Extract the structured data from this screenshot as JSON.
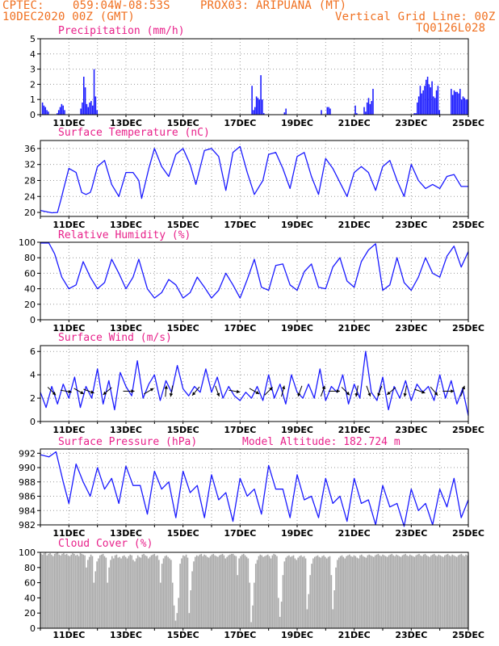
{
  "header": {
    "source": "CPTEC:",
    "coords": "059:04W-08:53S",
    "location": "PROX03: ARIPUANA (MT)",
    "run": "10DEC2020 00Z (GMT)",
    "grid_note": "Vertical Grid Line: 00Z",
    "model_code": "TQ0126L028"
  },
  "colors": {
    "header": "#f07020",
    "title": "#e8208a",
    "series": "#1a1aff",
    "cloud": "#aaaaaa",
    "grid": "#9a9a9a"
  },
  "chart_data": [
    {
      "type": "bar",
      "title": "Precipitation (mm/h)",
      "x_range_days": [
        0,
        15
      ],
      "x_ticks": [
        "11DEC",
        "13DEC",
        "15DEC",
        "17DEC",
        "19DEC",
        "21DEC",
        "23DEC",
        "25DEC"
      ],
      "y_ticks": [
        0,
        1,
        2,
        3,
        4,
        5
      ],
      "ylim": [
        0,
        5
      ],
      "grid": true,
      "values": [
        0,
        0.8,
        0.6,
        0.5,
        0.3,
        0.2,
        0,
        0,
        0,
        0,
        0,
        0.1,
        0.3,
        0.5,
        0.7,
        0.6,
        0.3,
        0,
        0,
        0,
        0,
        0,
        0,
        0,
        0,
        0,
        0,
        0.4,
        0.8,
        2.5,
        1.8,
        0.7,
        0.5,
        0.8,
        0.9,
        0.6,
        3.0,
        1.2,
        0.3,
        0,
        0,
        0,
        0,
        0,
        0,
        0,
        0,
        0,
        0,
        0,
        0,
        0,
        0,
        0,
        0,
        0,
        0,
        0,
        0,
        0,
        0,
        0,
        0,
        0,
        0,
        0,
        0,
        0,
        0,
        0,
        0,
        0,
        0,
        0,
        0,
        0,
        0,
        0,
        0,
        0,
        0,
        0,
        0,
        0,
        0,
        0,
        0,
        0,
        0,
        0,
        0,
        0,
        0,
        0,
        0,
        0,
        0,
        0,
        0,
        0,
        0,
        0,
        0,
        0,
        0,
        0,
        0,
        0,
        0,
        0,
        0,
        0,
        0,
        0,
        0,
        0,
        0,
        0,
        0,
        0,
        0,
        0,
        0,
        0,
        0,
        0,
        0,
        0,
        0,
        0,
        0,
        0,
        0,
        0,
        0,
        0,
        0,
        0,
        0,
        0,
        0,
        0,
        0,
        1.9,
        0.3,
        0.5,
        1.2,
        1.1,
        1.0,
        2.6,
        1.0,
        0.1,
        0,
        0,
        0,
        0,
        0,
        0,
        0,
        0,
        0,
        0,
        0,
        0,
        0,
        0.15,
        0.4,
        0,
        0,
        0,
        0,
        0,
        0,
        0,
        0,
        0,
        0,
        0,
        0,
        0,
        0,
        0,
        0,
        0,
        0,
        0,
        0,
        0,
        0,
        0,
        0.3,
        0,
        0,
        0,
        0.5,
        0.5,
        0.4,
        0,
        0,
        0,
        0,
        0,
        0,
        0,
        0,
        0,
        0,
        0,
        0,
        0,
        0,
        0,
        0,
        0.6,
        0.1,
        0,
        0,
        0,
        0,
        0.5,
        0.2,
        0.8,
        1.1,
        0.7,
        0.9,
        1.7,
        0,
        0,
        0,
        0,
        0,
        0,
        0,
        0,
        0,
        0,
        0,
        0,
        0,
        0,
        0,
        0,
        0,
        0,
        0,
        0,
        0,
        0,
        0,
        0,
        0,
        0,
        0,
        0.1,
        0.1,
        0.8,
        1.2,
        1.9,
        1.4,
        1.6,
        1.9,
        2.3,
        2.5,
        2.0,
        1.8,
        2.2,
        1.2,
        1.1,
        1.6,
        1.9,
        0.3,
        0,
        0,
        0,
        0,
        0,
        0,
        0,
        1.7,
        1.3,
        1.6,
        1.5,
        1.5,
        1.4,
        1.7,
        1.0,
        1.2,
        1.1,
        1.0,
        1.0
      ]
    },
    {
      "type": "line",
      "title": "Surface Temperature (nC)",
      "x_range_days": [
        0,
        15
      ],
      "x_ticks": [
        "11DEC",
        "13DEC",
        "15DEC",
        "17DEC",
        "19DEC",
        "21DEC",
        "23DEC",
        "25DEC"
      ],
      "y_ticks": [
        20,
        24,
        28,
        32,
        36
      ],
      "ylim": [
        19,
        38
      ],
      "grid": true,
      "x_days": [
        0.0,
        0.2,
        0.4,
        0.6,
        0.75,
        0.8,
        1.0,
        1.25,
        1.45,
        1.6,
        1.75,
        1.8,
        2.0,
        2.25,
        2.5,
        2.75,
        3.0,
        3.25,
        3.45,
        3.55,
        3.8,
        4.0,
        4.25,
        4.5,
        4.75,
        5.0,
        5.25,
        5.45,
        5.75,
        6.0,
        6.25,
        6.5,
        6.75,
        7.0,
        7.25,
        7.5,
        7.8,
        8.0,
        8.25,
        8.5,
        8.75,
        9.0,
        9.25,
        9.5,
        9.75,
        10.0,
        10.25,
        10.5,
        10.75,
        11.0,
        11.25,
        11.5,
        11.75,
        12.0,
        12.25,
        12.5,
        12.75,
        13.0,
        13.25,
        13.5,
        13.75,
        14.0,
        14.25,
        14.5,
        14.75,
        15.0
      ],
      "y": [
        20.5,
        20.2,
        19.9,
        20.0,
        24.0,
        25.5,
        31.0,
        30.0,
        25.0,
        24.5,
        25.0,
        26.0,
        31.5,
        33.0,
        27.0,
        24.0,
        30.0,
        30.0,
        28.0,
        23.5,
        31.0,
        36.0,
        31.5,
        29.0,
        34.5,
        36.0,
        32.0,
        27.0,
        35.5,
        36.0,
        34.0,
        25.5,
        35.0,
        36.5,
        30.0,
        24.5,
        28.0,
        34.5,
        35.0,
        31.0,
        26.0,
        34.0,
        35.0,
        29.0,
        24.5,
        33.5,
        31.0,
        27.5,
        24.0,
        30.0,
        31.5,
        30.0,
        25.5,
        31.5,
        33.0,
        28.0,
        24.0,
        32.0,
        28.0,
        26.0,
        27.0,
        26.0,
        29.0,
        29.5,
        26.5,
        26.5
      ]
    },
    {
      "type": "line",
      "title": "Relative Humidity (%)",
      "x_range_days": [
        0,
        15
      ],
      "x_ticks": [
        "11DEC",
        "13DEC",
        "15DEC",
        "17DEC",
        "19DEC",
        "21DEC",
        "23DEC",
        "25DEC"
      ],
      "y_ticks": [
        0,
        20,
        40,
        60,
        80,
        100
      ],
      "ylim": [
        0,
        100
      ],
      "grid": true,
      "x_days": [
        0.0,
        0.3,
        0.5,
        0.75,
        1.0,
        1.25,
        1.5,
        1.75,
        2.0,
        2.25,
        2.5,
        2.75,
        3.0,
        3.25,
        3.45,
        3.75,
        4.0,
        4.25,
        4.5,
        4.75,
        5.0,
        5.25,
        5.5,
        5.75,
        6.0,
        6.25,
        6.5,
        6.75,
        7.0,
        7.25,
        7.5,
        7.75,
        8.0,
        8.25,
        8.5,
        8.75,
        9.0,
        9.25,
        9.5,
        9.75,
        10.0,
        10.25,
        10.5,
        10.75,
        11.0,
        11.25,
        11.5,
        11.75,
        12.0,
        12.25,
        12.5,
        12.75,
        13.0,
        13.25,
        13.5,
        13.75,
        14.0,
        14.25,
        14.5,
        14.75,
        15.0
      ],
      "y": [
        99,
        99,
        85,
        55,
        40,
        45,
        75,
        55,
        40,
        48,
        78,
        60,
        40,
        55,
        78,
        40,
        28,
        35,
        52,
        45,
        28,
        35,
        55,
        42,
        28,
        38,
        60,
        45,
        28,
        52,
        78,
        42,
        38,
        70,
        72,
        45,
        38,
        62,
        72,
        42,
        40,
        68,
        80,
        50,
        42,
        75,
        90,
        98,
        38,
        45,
        80,
        48,
        38,
        55,
        80,
        60,
        55,
        82,
        95,
        68,
        88
      ]
    },
    {
      "type": "line",
      "title": "Surface Wind (m/s)",
      "x_range_days": [
        0,
        15
      ],
      "x_ticks": [
        "11DEC",
        "13DEC",
        "15DEC",
        "17DEC",
        "19DEC",
        "21DEC",
        "23DEC",
        "25DEC"
      ],
      "y_ticks": [
        0,
        2,
        4,
        6
      ],
      "ylim": [
        0,
        6.5
      ],
      "grid": true,
      "x_days": [
        0.0,
        0.2,
        0.4,
        0.6,
        0.8,
        1.0,
        1.2,
        1.4,
        1.6,
        1.8,
        2.0,
        2.2,
        2.4,
        2.6,
        2.8,
        3.0,
        3.2,
        3.4,
        3.6,
        3.8,
        4.0,
        4.2,
        4.4,
        4.6,
        4.8,
        5.0,
        5.2,
        5.4,
        5.6,
        5.8,
        6.0,
        6.2,
        6.4,
        6.6,
        6.8,
        7.0,
        7.2,
        7.4,
        7.6,
        7.8,
        8.0,
        8.2,
        8.4,
        8.6,
        8.8,
        9.0,
        9.2,
        9.4,
        9.6,
        9.8,
        10.0,
        10.2,
        10.4,
        10.6,
        10.8,
        11.0,
        11.2,
        11.4,
        11.6,
        11.8,
        12.0,
        12.2,
        12.4,
        12.6,
        12.8,
        13.0,
        13.2,
        13.4,
        13.6,
        13.8,
        14.0,
        14.2,
        14.4,
        14.6,
        14.8,
        15.0
      ],
      "y": [
        2.5,
        1.2,
        3.0,
        1.5,
        3.2,
        2.0,
        3.8,
        1.2,
        3.0,
        2.0,
        4.5,
        1.5,
        3.5,
        1.0,
        4.2,
        3.0,
        2.2,
        5.2,
        2.0,
        3.2,
        4.0,
        1.8,
        3.5,
        2.5,
        4.8,
        2.8,
        2.2,
        3.0,
        2.5,
        4.5,
        2.5,
        3.8,
        2.0,
        3.0,
        2.2,
        1.8,
        2.5,
        2.0,
        3.0,
        1.8,
        4.0,
        2.0,
        3.2,
        1.5,
        4.0,
        2.5,
        2.0,
        3.2,
        2.0,
        4.5,
        1.8,
        3.0,
        2.5,
        4.0,
        1.5,
        3.2,
        2.0,
        6.0,
        2.5,
        1.8,
        3.8,
        1.0,
        3.0,
        2.0,
        3.5,
        1.8,
        3.2,
        2.5,
        3.0,
        1.8,
        4.0,
        2.0,
        3.5,
        1.5,
        2.8,
        0.5
      ],
      "arrows": [
        {
          "day": 0.4,
          "dir": 135
        },
        {
          "day": 0.9,
          "dir": 100
        },
        {
          "day": 1.35,
          "dir": 120
        },
        {
          "day": 1.7,
          "dir": 110
        },
        {
          "day": 2.35,
          "dir": 230
        },
        {
          "day": 3.1,
          "dir": 90
        },
        {
          "day": 3.8,
          "dir": 60
        },
        {
          "day": 4.4,
          "dir": 5
        },
        {
          "day": 4.6,
          "dir": 190
        },
        {
          "day": 5.45,
          "dir": 220
        },
        {
          "day": 6.2,
          "dir": 160
        },
        {
          "day": 6.8,
          "dir": 100
        },
        {
          "day": 7.5,
          "dir": 120
        },
        {
          "day": 8.0,
          "dir": 45
        },
        {
          "day": 8.5,
          "dir": 15
        },
        {
          "day": 9.1,
          "dir": 200
        },
        {
          "day": 9.9,
          "dir": 20
        },
        {
          "day": 10.3,
          "dir": 90
        },
        {
          "day": 10.7,
          "dir": 135
        },
        {
          "day": 11.1,
          "dir": 190
        },
        {
          "day": 11.5,
          "dir": 160
        },
        {
          "day": 11.9,
          "dir": 200
        },
        {
          "day": 12.3,
          "dir": 230
        },
        {
          "day": 12.8,
          "dir": 190
        },
        {
          "day": 13.3,
          "dir": 110
        },
        {
          "day": 13.8,
          "dir": 140
        },
        {
          "day": 14.3,
          "dir": 90
        },
        {
          "day": 14.8,
          "dir": 20
        }
      ]
    },
    {
      "type": "line",
      "title": "Surface Pressure (hPa)",
      "subtitle": "Model Altitude: 182.724 m",
      "x_range_days": [
        0,
        15
      ],
      "x_ticks": [
        "11DEC",
        "13DEC",
        "15DEC",
        "17DEC",
        "19DEC",
        "21DEC",
        "23DEC",
        "25DEC"
      ],
      "y_ticks": [
        982,
        984,
        986,
        988,
        990,
        992
      ],
      "ylim": [
        982,
        992.6
      ],
      "grid": true,
      "x_days": [
        0.0,
        0.3,
        0.55,
        0.8,
        1.0,
        1.25,
        1.5,
        1.75,
        2.0,
        2.25,
        2.5,
        2.75,
        3.0,
        3.25,
        3.5,
        3.75,
        4.0,
        4.25,
        4.5,
        4.75,
        5.0,
        5.25,
        5.5,
        5.75,
        6.0,
        6.25,
        6.5,
        6.75,
        7.0,
        7.25,
        7.5,
        7.75,
        8.0,
        8.25,
        8.5,
        8.75,
        9.0,
        9.25,
        9.5,
        9.75,
        10.0,
        10.25,
        10.5,
        10.75,
        11.0,
        11.25,
        11.5,
        11.75,
        12.0,
        12.25,
        12.5,
        12.75,
        13.0,
        13.25,
        13.5,
        13.75,
        14.0,
        14.25,
        14.5,
        14.75,
        15.0
      ],
      "y": [
        991.8,
        991.5,
        992.2,
        988.0,
        985.0,
        990.5,
        988.0,
        986.0,
        990.0,
        987.0,
        988.5,
        985.0,
        990.2,
        987.5,
        987.5,
        983.5,
        989.5,
        987.0,
        988.0,
        983.0,
        989.5,
        986.5,
        987.5,
        983.0,
        989.0,
        985.5,
        986.5,
        982.5,
        988.5,
        986.0,
        987.0,
        983.5,
        990.3,
        987.0,
        987.0,
        983.0,
        989.0,
        985.5,
        986.0,
        983.0,
        988.5,
        985.0,
        986.0,
        982.5,
        988.5,
        985.0,
        985.5,
        982.0,
        987.5,
        984.5,
        985.0,
        981.8,
        987.0,
        984.0,
        985.0,
        982.0,
        987.0,
        984.5,
        988.5,
        983.0,
        985.5
      ]
    },
    {
      "type": "bar",
      "title": "Cloud Cover (%)",
      "x_range_days": [
        0,
        15
      ],
      "x_ticks": [
        "11DEC",
        "13DEC",
        "15DEC",
        "17DEC",
        "19DEC",
        "21DEC",
        "23DEC",
        "25DEC"
      ],
      "y_ticks": [
        0,
        20,
        40,
        60,
        80,
        100
      ],
      "ylim": [
        0,
        100
      ],
      "grid": false,
      "values": [
        98,
        97,
        99,
        100,
        96,
        98,
        99,
        97,
        95,
        98,
        99,
        100,
        97,
        96,
        98,
        99,
        97,
        98,
        96,
        95,
        97,
        99,
        98,
        96,
        97,
        95,
        99,
        98,
        97,
        96,
        80,
        90,
        94,
        97,
        95,
        60,
        75,
        88,
        92,
        96,
        97,
        98,
        95,
        93,
        60,
        80,
        90,
        95,
        92,
        96,
        97,
        93,
        94,
        92,
        95,
        96,
        94,
        92,
        95,
        97,
        96,
        90,
        88,
        92,
        96,
        94,
        93,
        97,
        98,
        96,
        95,
        92,
        94,
        96,
        97,
        98,
        95,
        96,
        90,
        60,
        85,
        92,
        95,
        96,
        94,
        92,
        90,
        60,
        30,
        10,
        20,
        40,
        85,
        92,
        96,
        95,
        97,
        93,
        20,
        50,
        75,
        88,
        94,
        96,
        95,
        97,
        98,
        95,
        97,
        96,
        94,
        93,
        95,
        97,
        98,
        96,
        95,
        94,
        96,
        97,
        98,
        96,
        92,
        94,
        96,
        97,
        98,
        98,
        96,
        95,
        70,
        92,
        95,
        97,
        98,
        96,
        94,
        92,
        60,
        8,
        30,
        60,
        85,
        90,
        95,
        97,
        96,
        94,
        95,
        96,
        97,
        95,
        92,
        96,
        98,
        97,
        95,
        40,
        15,
        35,
        70,
        88,
        93,
        95,
        96,
        94,
        95,
        96,
        92,
        90,
        93,
        95,
        96,
        94,
        95,
        92,
        25,
        45,
        70,
        85,
        92,
        94,
        95,
        96,
        94,
        93,
        95,
        96,
        94,
        92,
        94,
        95,
        70,
        25,
        50,
        80,
        90,
        93,
        95,
        96,
        94,
        92,
        95,
        96,
        97,
        95,
        94,
        96,
        95,
        93,
        92,
        96,
        97,
        95,
        94,
        93,
        96,
        97,
        96,
        95,
        94,
        96,
        97,
        98,
        96,
        95,
        97,
        96,
        95,
        94,
        96,
        97,
        98,
        96,
        95,
        97,
        96,
        95,
        94,
        96,
        97,
        98,
        96,
        95,
        97,
        96,
        95,
        94,
        96,
        97,
        98,
        96,
        95,
        97,
        98,
        96,
        95,
        94,
        96,
        97,
        98,
        96,
        95,
        97,
        96,
        95,
        94,
        96,
        97,
        98,
        96,
        95,
        97,
        96,
        95,
        94,
        96,
        97,
        98,
        96,
        95,
        97,
        96
      ]
    }
  ]
}
